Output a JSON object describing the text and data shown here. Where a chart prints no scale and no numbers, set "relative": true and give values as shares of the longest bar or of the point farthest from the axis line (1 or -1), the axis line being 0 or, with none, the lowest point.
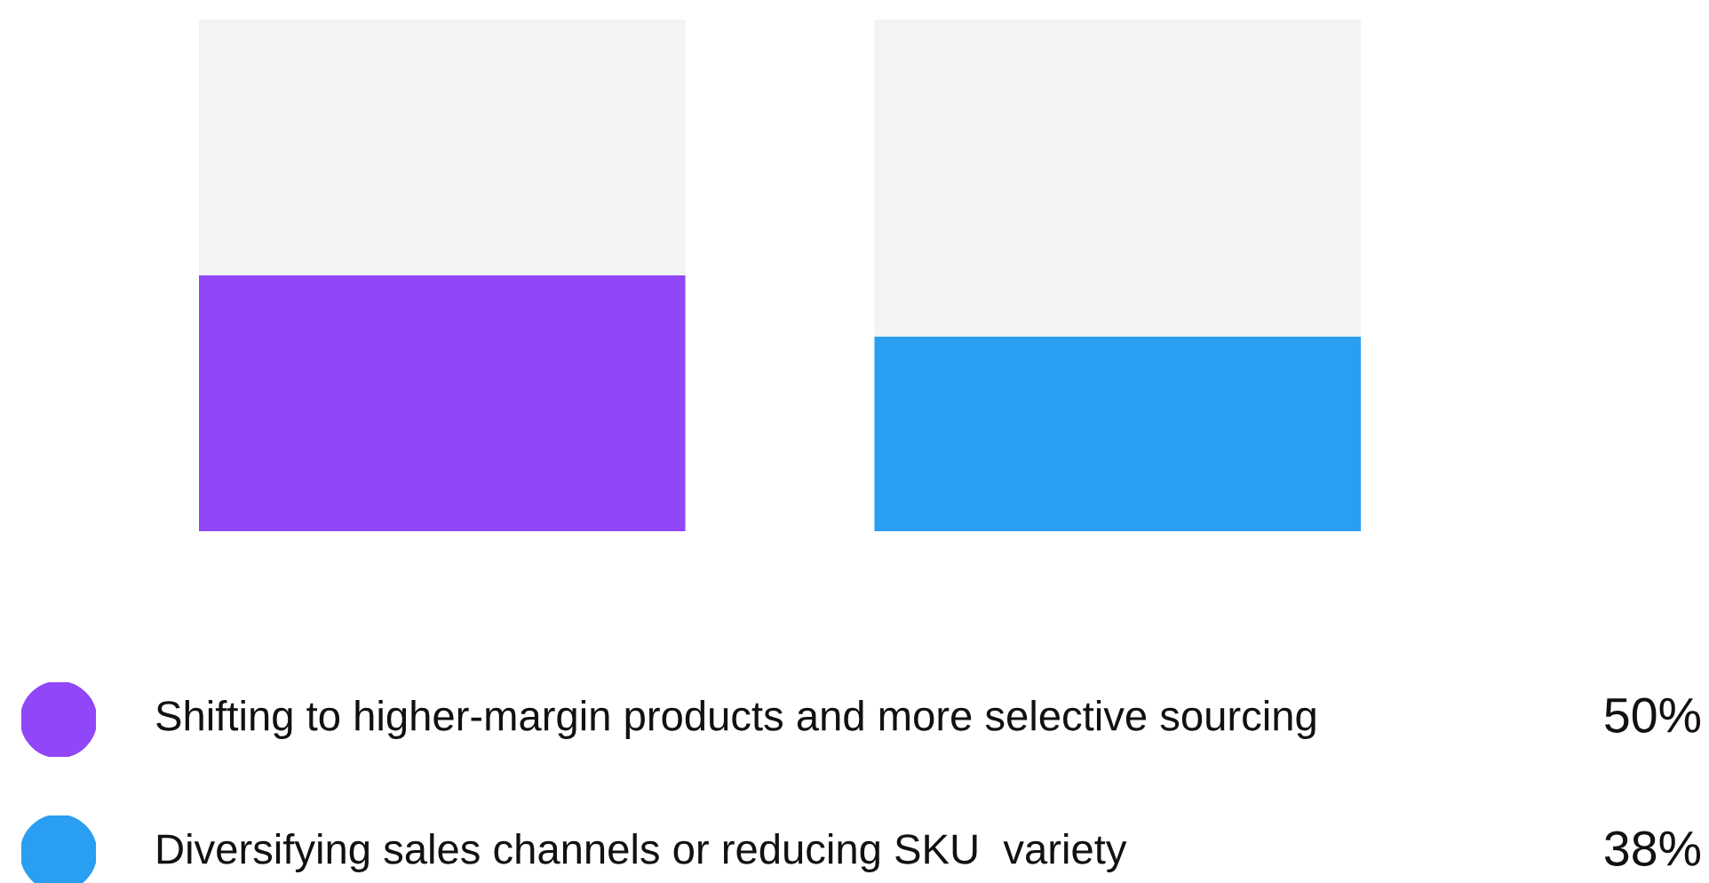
{
  "chart_data": {
    "type": "bar",
    "categories": [
      null,
      null
    ],
    "stacked": true,
    "relative": true,
    "series": [
      {
        "colors": [
          "#9146f7",
          "#2a9ef1"
        ],
        "values": [
          0.5,
          0.38
        ]
      },
      {
        "color": "#f2f3f5",
        "values": [
          0.5,
          0.62
        ]
      }
    ],
    "annotations": [
      "Shifting to higher-margin products and more selective sourcing",
      "50%",
      "Diversifying sales channels or reducing SKU  variety",
      "38%"
    ]
  }
}
